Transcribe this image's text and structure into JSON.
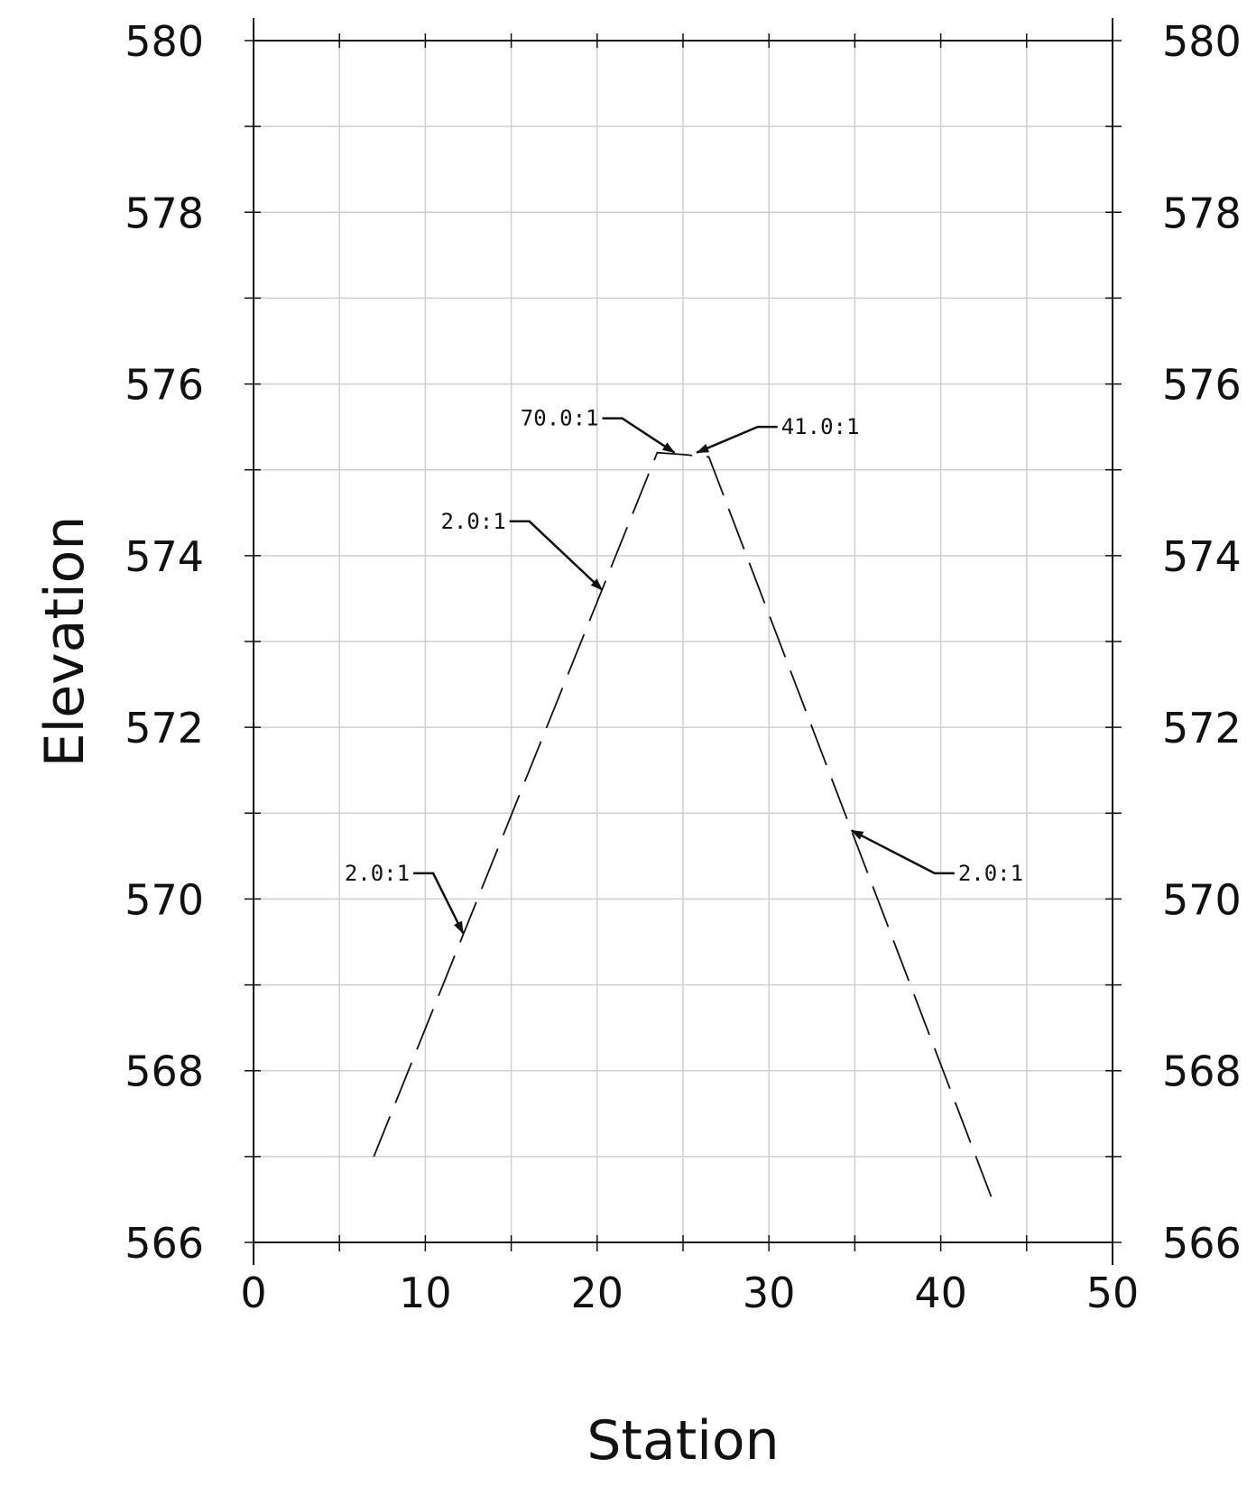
{
  "chart_data": {
    "type": "line",
    "xlabel": "Station",
    "ylabel": "Elevation",
    "xlim": [
      0,
      50
    ],
    "ylim": [
      566,
      580
    ],
    "x_ticks": [
      "0",
      "10",
      "20",
      "30",
      "40",
      "50"
    ],
    "y_ticks": [
      "566",
      "568",
      "570",
      "572",
      "574",
      "576",
      "578",
      "580"
    ],
    "grid": true,
    "series": [
      {
        "style": "dashed",
        "points": [
          {
            "x": 7.0,
            "y": 567.0
          },
          {
            "x": 23.5,
            "y": 575.2
          },
          {
            "x": 24.9,
            "y": 575.18
          },
          {
            "x": 26.5,
            "y": 575.15
          },
          {
            "x": 43.0,
            "y": 566.5
          }
        ]
      }
    ],
    "annotations": [
      {
        "text": "2.0:1",
        "target": {
          "x": 12.2,
          "y": 569.6
        },
        "label_at": {
          "x": 9.3,
          "y": 570.3
        },
        "side": "left"
      },
      {
        "text": "2.0:1",
        "target": {
          "x": 20.3,
          "y": 573.6
        },
        "label_at": {
          "x": 14.9,
          "y": 574.4
        },
        "side": "left"
      },
      {
        "text": "70.0:1",
        "target": {
          "x": 24.5,
          "y": 575.2
        },
        "label_at": {
          "x": 20.3,
          "y": 575.6
        },
        "side": "left"
      },
      {
        "text": "41.0:1",
        "target": {
          "x": 25.8,
          "y": 575.2
        },
        "label_at": {
          "x": 30.5,
          "y": 575.5
        },
        "side": "right"
      },
      {
        "text": "2.0:1",
        "target": {
          "x": 34.8,
          "y": 570.8
        },
        "label_at": {
          "x": 40.8,
          "y": 570.3
        },
        "side": "right"
      }
    ]
  }
}
